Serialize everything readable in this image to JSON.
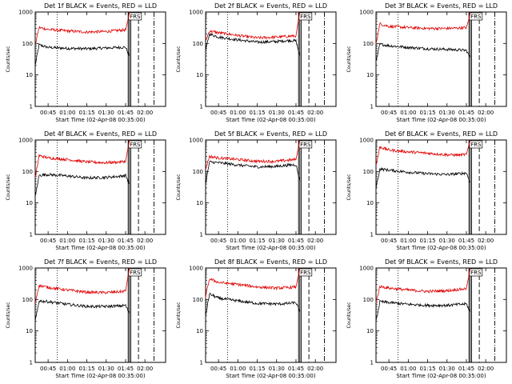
{
  "style": {
    "events_color": "#000000",
    "lld_color": "#e00000",
    "frame_color": "#000000"
  },
  "shared": {
    "ylabel": "Counts/sec",
    "xlabel": "Start Time (02-Apr-08 00:35:00)",
    "marker": "FRS"
  },
  "chart_data": [
    {
      "type": "line",
      "title": "Det 1f BLACK = Events, RED = LLD",
      "ylabel": "Counts/sec",
      "xlabel": "Start Time (02-Apr-08 00:35:00)",
      "yscale": "log",
      "ylim": [
        1,
        1000
      ],
      "yticks": [
        "1",
        "10",
        "100",
        "1000"
      ],
      "xlim": [
        "00:35",
        "02:16"
      ],
      "xticks": [
        "00:45",
        "01:00",
        "01:15",
        "01:30",
        "01:45",
        "02:00"
      ],
      "grid": false,
      "annotation": "FRS",
      "series": [
        {
          "name": "Events",
          "color": "#000000",
          "x": [
            "00:35",
            "00:38",
            "00:45",
            "01:00",
            "01:15",
            "01:30",
            "01:40",
            "01:45",
            "01:48"
          ],
          "y": [
            20,
            90,
            75,
            70,
            68,
            72,
            75,
            76,
            40
          ]
        },
        {
          "name": "LLD",
          "color": "#e00000",
          "x": [
            "00:35",
            "00:38",
            "00:45",
            "01:00",
            "01:15",
            "01:30",
            "01:40",
            "01:45",
            "01:47",
            "01:48"
          ],
          "y": [
            90,
            320,
            280,
            250,
            230,
            240,
            260,
            270,
            600,
            1000
          ]
        }
      ]
    },
    {
      "type": "line",
      "title": "Det 2f BLACK = Events, RED = LLD",
      "ylabel": "Counts/sec",
      "xlabel": "Start Time (02-Apr-08 00:35:00)",
      "yscale": "log",
      "ylim": [
        1,
        1000
      ],
      "yticks": [
        "1",
        "10",
        "100",
        "1000"
      ],
      "xlim": [
        "00:35",
        "02:16"
      ],
      "xticks": [
        "00:45",
        "01:00",
        "01:15",
        "01:30",
        "01:45",
        "02:00"
      ],
      "grid": false,
      "annotation": "FRS",
      "series": [
        {
          "name": "Events",
          "color": "#000000",
          "x": [
            "00:35",
            "00:38",
            "00:45",
            "01:00",
            "01:15",
            "01:30",
            "01:40",
            "01:45",
            "01:48"
          ],
          "y": [
            60,
            200,
            160,
            130,
            110,
            115,
            125,
            120,
            40
          ]
        },
        {
          "name": "LLD",
          "color": "#e00000",
          "x": [
            "00:35",
            "00:38",
            "00:45",
            "01:00",
            "01:15",
            "01:30",
            "01:40",
            "01:45",
            "01:47",
            "01:48"
          ],
          "y": [
            120,
            250,
            220,
            180,
            150,
            160,
            170,
            175,
            600,
            1000
          ]
        }
      ]
    },
    {
      "type": "line",
      "title": "Det 3f BLACK = Events, RED = LLD",
      "ylabel": "Counts/sec",
      "xlabel": "Start Time (02-Apr-08 00:35:00)",
      "yscale": "log",
      "ylim": [
        1,
        1000
      ],
      "yticks": [
        "1",
        "10",
        "100",
        "1000"
      ],
      "xlim": [
        "00:35",
        "02:16"
      ],
      "xticks": [
        "00:45",
        "01:00",
        "01:15",
        "01:30",
        "01:45",
        "02:00"
      ],
      "grid": false,
      "annotation": "FRS",
      "series": [
        {
          "name": "Events",
          "color": "#000000",
          "x": [
            "00:35",
            "00:38",
            "00:45",
            "01:00",
            "01:15",
            "01:30",
            "01:40",
            "01:45",
            "01:48"
          ],
          "y": [
            25,
            95,
            85,
            75,
            68,
            65,
            62,
            60,
            35
          ]
        },
        {
          "name": "LLD",
          "color": "#e00000",
          "x": [
            "00:35",
            "00:38",
            "00:45",
            "01:00",
            "01:15",
            "01:30",
            "01:40",
            "01:45",
            "01:47",
            "01:48"
          ],
          "y": [
            100,
            420,
            350,
            320,
            300,
            300,
            310,
            320,
            600,
            1000
          ]
        }
      ]
    },
    {
      "type": "line",
      "title": "Det 4f BLACK = Events, RED = LLD",
      "ylabel": "Counts/sec",
      "xlabel": "Start Time (02-Apr-08 00:35:00)",
      "yscale": "log",
      "ylim": [
        1,
        1000
      ],
      "yticks": [
        "1",
        "10",
        "100",
        "1000"
      ],
      "xlim": [
        "00:35",
        "02:16"
      ],
      "xticks": [
        "00:45",
        "01:00",
        "01:15",
        "01:30",
        "01:45",
        "02:00"
      ],
      "grid": false,
      "annotation": "FRS",
      "series": [
        {
          "name": "Events",
          "color": "#000000",
          "x": [
            "00:35",
            "00:38",
            "00:45",
            "01:00",
            "01:15",
            "01:30",
            "01:40",
            "01:45",
            "01:48"
          ],
          "y": [
            15,
            75,
            80,
            72,
            62,
            65,
            70,
            75,
            40
          ]
        },
        {
          "name": "LLD",
          "color": "#e00000",
          "x": [
            "00:35",
            "00:38",
            "00:45",
            "01:00",
            "01:15",
            "01:30",
            "01:40",
            "01:45",
            "01:47",
            "01:48"
          ],
          "y": [
            60,
            320,
            270,
            240,
            200,
            190,
            200,
            210,
            600,
            1000
          ]
        }
      ]
    },
    {
      "type": "line",
      "title": "Det 5f BLACK = Events, RED = LLD",
      "ylabel": "Counts/sec",
      "xlabel": "Start Time (02-Apr-08 00:35:00)",
      "yscale": "log",
      "ylim": [
        1,
        1000
      ],
      "yticks": [
        "1",
        "10",
        "100",
        "1000"
      ],
      "xlim": [
        "00:35",
        "02:16"
      ],
      "xticks": [
        "00:45",
        "01:00",
        "01:15",
        "01:30",
        "01:45",
        "02:00"
      ],
      "grid": false,
      "annotation": "FRS",
      "series": [
        {
          "name": "Events",
          "color": "#000000",
          "x": [
            "00:35",
            "00:38",
            "00:45",
            "01:00",
            "01:15",
            "01:30",
            "01:40",
            "01:45",
            "01:48"
          ],
          "y": [
            40,
            200,
            190,
            160,
            140,
            145,
            160,
            165,
            50
          ]
        },
        {
          "name": "LLD",
          "color": "#e00000",
          "x": [
            "00:35",
            "00:38",
            "00:45",
            "01:00",
            "01:15",
            "01:30",
            "01:40",
            "01:45",
            "01:47",
            "01:48"
          ],
          "y": [
            120,
            300,
            270,
            240,
            210,
            210,
            230,
            240,
            600,
            1000
          ]
        }
      ]
    },
    {
      "type": "line",
      "title": "Det 6f BLACK = Events, RED = LLD",
      "ylabel": "Counts/sec",
      "xlabel": "Start Time (02-Apr-08 00:35:00)",
      "yscale": "log",
      "ylim": [
        1,
        1000
      ],
      "yticks": [
        "1",
        "10",
        "100",
        "1000"
      ],
      "xlim": [
        "00:35",
        "02:16"
      ],
      "xticks": [
        "00:45",
        "01:00",
        "01:15",
        "01:30",
        "01:45",
        "02:00"
      ],
      "grid": false,
      "annotation": "FRS",
      "series": [
        {
          "name": "Events",
          "color": "#000000",
          "x": [
            "00:35",
            "00:38",
            "00:45",
            "01:00",
            "01:15",
            "01:30",
            "01:40",
            "01:45",
            "01:48"
          ],
          "y": [
            30,
            120,
            110,
            95,
            85,
            80,
            85,
            90,
            45
          ]
        },
        {
          "name": "LLD",
          "color": "#e00000",
          "x": [
            "00:35",
            "00:38",
            "00:45",
            "01:00",
            "01:15",
            "01:30",
            "01:40",
            "01:45",
            "01:47",
            "01:48"
          ],
          "y": [
            150,
            600,
            480,
            420,
            380,
            340,
            330,
            350,
            700,
            1000
          ]
        }
      ]
    },
    {
      "type": "line",
      "title": "Det 7f BLACK = Events, RED = LLD",
      "ylabel": "Counts/sec",
      "xlabel": "Start Time (02-Apr-08 00:35:00)",
      "yscale": "log",
      "ylim": [
        1,
        1000
      ],
      "yticks": [
        "1",
        "10",
        "100",
        "1000"
      ],
      "xlim": [
        "00:35",
        "02:16"
      ],
      "xticks": [
        "00:45",
        "01:00",
        "01:15",
        "01:30",
        "01:45",
        "02:00"
      ],
      "grid": false,
      "annotation": "FRS",
      "series": [
        {
          "name": "Events",
          "color": "#000000",
          "x": [
            "00:35",
            "00:38",
            "00:45",
            "01:00",
            "01:15",
            "01:30",
            "01:40",
            "01:45",
            "01:48"
          ],
          "y": [
            20,
            90,
            85,
            70,
            60,
            60,
            62,
            65,
            35
          ]
        },
        {
          "name": "LLD",
          "color": "#e00000",
          "x": [
            "00:35",
            "00:38",
            "00:45",
            "01:00",
            "01:15",
            "01:30",
            "01:40",
            "01:45",
            "01:47",
            "01:48"
          ],
          "y": [
            80,
            280,
            240,
            200,
            170,
            165,
            175,
            185,
            600,
            1000
          ]
        }
      ]
    },
    {
      "type": "line",
      "title": "Det 8f BLACK = Events, RED = LLD",
      "ylabel": "Counts/sec",
      "xlabel": "Start Time (02-Apr-08 00:35:00)",
      "yscale": "log",
      "ylim": [
        1,
        1000
      ],
      "yticks": [
        "1",
        "10",
        "100",
        "1000"
      ],
      "xlim": [
        "00:35",
        "02:16"
      ],
      "xticks": [
        "00:45",
        "01:00",
        "01:15",
        "01:30",
        "01:45",
        "02:00"
      ],
      "grid": false,
      "annotation": "FRS",
      "series": [
        {
          "name": "Events",
          "color": "#000000",
          "x": [
            "00:35",
            "00:38",
            "00:45",
            "01:00",
            "01:15",
            "01:30",
            "01:40",
            "01:45",
            "01:48"
          ],
          "y": [
            30,
            150,
            110,
            90,
            75,
            72,
            75,
            80,
            40
          ]
        },
        {
          "name": "LLD",
          "color": "#e00000",
          "x": [
            "00:35",
            "00:38",
            "00:45",
            "01:00",
            "01:15",
            "01:30",
            "01:40",
            "01:45",
            "01:47",
            "01:48"
          ],
          "y": [
            120,
            450,
            350,
            300,
            250,
            230,
            240,
            250,
            600,
            1000
          ]
        }
      ]
    },
    {
      "type": "line",
      "title": "Det 9f BLACK = Events, RED = LLD",
      "ylabel": "Counts/sec",
      "xlabel": "Start Time (02-Apr-08 00:35:00)",
      "yscale": "log",
      "ylim": [
        1,
        1000
      ],
      "yticks": [
        "1",
        "10",
        "100",
        "1000"
      ],
      "xlim": [
        "00:35",
        "02:16"
      ],
      "xticks": [
        "00:45",
        "01:00",
        "01:15",
        "01:30",
        "01:45",
        "02:00"
      ],
      "grid": false,
      "annotation": "FRS",
      "series": [
        {
          "name": "Events",
          "color": "#000000",
          "x": [
            "00:35",
            "00:38",
            "00:45",
            "01:00",
            "01:15",
            "01:30",
            "01:40",
            "01:45",
            "01:48"
          ],
          "y": [
            20,
            85,
            80,
            70,
            65,
            65,
            70,
            72,
            40
          ]
        },
        {
          "name": "LLD",
          "color": "#e00000",
          "x": [
            "00:35",
            "00:38",
            "00:45",
            "01:00",
            "01:15",
            "01:30",
            "01:40",
            "01:45",
            "01:47",
            "01:48"
          ],
          "y": [
            80,
            260,
            230,
            200,
            180,
            190,
            210,
            220,
            600,
            1000
          ]
        }
      ]
    }
  ]
}
